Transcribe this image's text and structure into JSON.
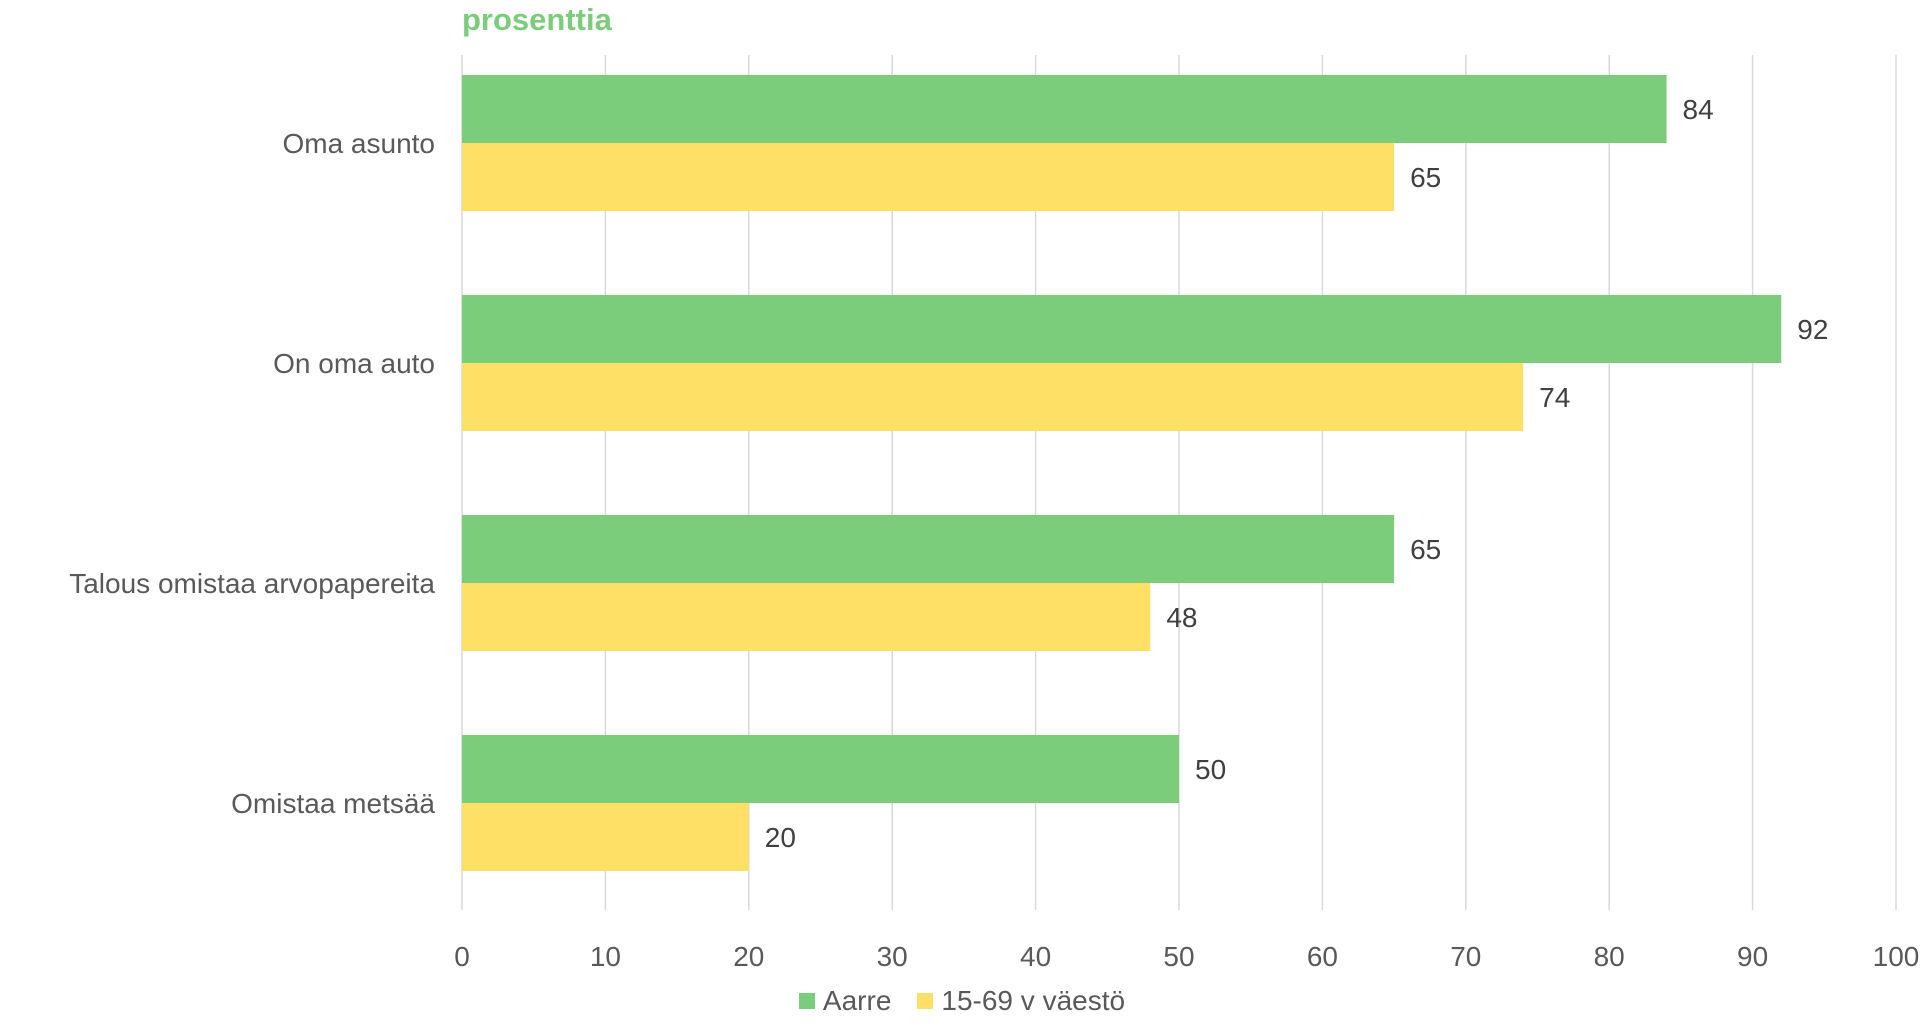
{
  "chart_data": {
    "type": "bar",
    "orientation": "horizontal",
    "unit_label": "prosenttia",
    "categories": [
      "Oma asunto",
      "On oma auto",
      "Talous omistaa arvopapereita",
      "Omistaa metsää"
    ],
    "series": [
      {
        "name": "Aarre",
        "color": "#7bcd7b",
        "values": [
          84,
          92,
          65,
          50
        ]
      },
      {
        "name": "15-69 v väestö",
        "color": "#ffe066",
        "values": [
          65,
          74,
          48,
          20
        ]
      }
    ],
    "xlim": [
      0,
      100
    ],
    "xticks": [
      0,
      10,
      20,
      30,
      40,
      50,
      60,
      70,
      80,
      90,
      100
    ],
    "grid": true,
    "data_labels": true,
    "legend_position": "bottom"
  }
}
